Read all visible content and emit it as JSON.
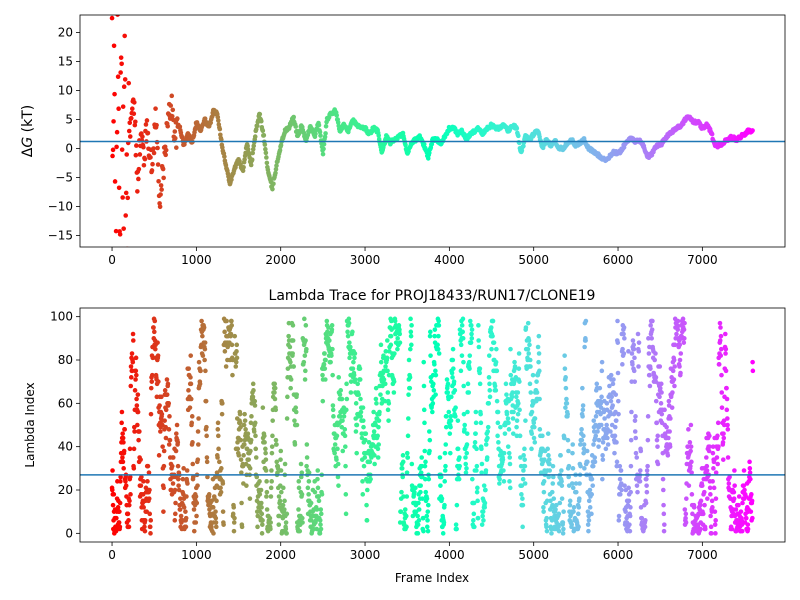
{
  "figure": {
    "background": "#ffffff",
    "reference_line_color": "#1f77b4",
    "colormap": "rainbow"
  },
  "chart_data": [
    {
      "type": "scatter",
      "title": "",
      "xlabel": "",
      "ylabel_prefix": "Δ",
      "ylabel_var": "G",
      "ylabel_suffix": " (kT)",
      "xlim": [
        -380,
        7980
      ],
      "ylim": [
        -17,
        23
      ],
      "xticks": [
        0,
        1000,
        2000,
        3000,
        4000,
        5000,
        6000,
        7000
      ],
      "yticks": [
        -15,
        -10,
        -5,
        0,
        5,
        10,
        15,
        20
      ],
      "hline": 1.2,
      "n_frames": 7600,
      "color_by": "frame index (rainbow colormap, red at start to violet at end)",
      "trace": [
        [
          0,
          20
        ],
        [
          10,
          -16.5
        ],
        [
          25,
          12
        ],
        [
          40,
          -13
        ],
        [
          55,
          10
        ],
        [
          70,
          7.5
        ],
        [
          90,
          -7
        ],
        [
          110,
          6.5
        ],
        [
          130,
          -4
        ],
        [
          150,
          5.5
        ],
        [
          175,
          -6
        ],
        [
          200,
          4
        ],
        [
          230,
          5
        ],
        [
          260,
          7.5
        ],
        [
          300,
          -5
        ],
        [
          340,
          2
        ],
        [
          380,
          -1
        ],
        [
          420,
          4
        ],
        [
          470,
          -4
        ],
        [
          520,
          6
        ],
        [
          560,
          -8.5
        ],
        [
          600,
          -5
        ],
        [
          650,
          3
        ],
        [
          700,
          8
        ],
        [
          750,
          2
        ],
        [
          800,
          4
        ],
        [
          850,
          0.5
        ],
        [
          900,
          2.5
        ],
        [
          950,
          1
        ],
        [
          1000,
          4.5
        ],
        [
          1050,
          3
        ],
        [
          1100,
          5
        ],
        [
          1150,
          3.5
        ],
        [
          1200,
          6.5
        ],
        [
          1250,
          6
        ],
        [
          1300,
          1
        ],
        [
          1350,
          -3
        ],
        [
          1400,
          -6
        ],
        [
          1450,
          -3.5
        ],
        [
          1500,
          -2
        ],
        [
          1550,
          -4
        ],
        [
          1600,
          1
        ],
        [
          1650,
          -3
        ],
        [
          1700,
          2.5
        ],
        [
          1750,
          6
        ],
        [
          1800,
          2
        ],
        [
          1850,
          -4
        ],
        [
          1900,
          -7
        ],
        [
          1950,
          -3
        ],
        [
          2000,
          0.5
        ],
        [
          2050,
          3
        ],
        [
          2100,
          3.5
        ],
        [
          2150,
          5.5
        ],
        [
          2200,
          2
        ],
        [
          2250,
          4
        ],
        [
          2300,
          1
        ],
        [
          2350,
          4
        ],
        [
          2400,
          2
        ],
        [
          2450,
          4.5
        ],
        [
          2500,
          -1
        ],
        [
          2550,
          5
        ],
        [
          2600,
          6
        ],
        [
          2650,
          6.5
        ],
        [
          2700,
          3
        ],
        [
          2750,
          4
        ],
        [
          2800,
          3
        ],
        [
          2850,
          5
        ],
        [
          2900,
          4
        ],
        [
          2950,
          3.5
        ],
        [
          3000,
          3.5
        ],
        [
          3050,
          2.5
        ],
        [
          3100,
          3.5
        ],
        [
          3150,
          3
        ],
        [
          3200,
          -1
        ],
        [
          3250,
          2
        ],
        [
          3300,
          1
        ],
        [
          3350,
          1.5
        ],
        [
          3400,
          2
        ],
        [
          3450,
          2.5
        ],
        [
          3500,
          -1
        ],
        [
          3550,
          1
        ],
        [
          3600,
          1.5
        ],
        [
          3650,
          2
        ],
        [
          3700,
          0.5
        ],
        [
          3750,
          -1.5
        ],
        [
          3800,
          1.5
        ],
        [
          3850,
          1.5
        ],
        [
          3900,
          1
        ],
        [
          3950,
          2
        ],
        [
          4000,
          3.5
        ],
        [
          4050,
          3.5
        ],
        [
          4100,
          2.5
        ],
        [
          4150,
          3
        ],
        [
          4200,
          1.5
        ],
        [
          4250,
          2.5
        ],
        [
          4300,
          3
        ],
        [
          4350,
          3.5
        ],
        [
          4400,
          2.5
        ],
        [
          4450,
          3.5
        ],
        [
          4500,
          4
        ],
        [
          4550,
          3.5
        ],
        [
          4600,
          3.5
        ],
        [
          4650,
          4
        ],
        [
          4700,
          3
        ],
        [
          4750,
          4
        ],
        [
          4800,
          3.5
        ],
        [
          4850,
          -1
        ],
        [
          4900,
          2
        ],
        [
          4950,
          1.5
        ],
        [
          5000,
          2.5
        ],
        [
          5050,
          3
        ],
        [
          5100,
          0
        ],
        [
          5150,
          1.5
        ],
        [
          5200,
          0.5
        ],
        [
          5250,
          1.5
        ],
        [
          5300,
          0
        ],
        [
          5350,
          0
        ],
        [
          5400,
          1
        ],
        [
          5450,
          1.5
        ],
        [
          5500,
          0.5
        ],
        [
          5550,
          1
        ],
        [
          5600,
          1.5
        ],
        [
          5650,
          0
        ],
        [
          5700,
          -0.5
        ],
        [
          5750,
          -1
        ],
        [
          5800,
          -1.5
        ],
        [
          5850,
          -2
        ],
        [
          5900,
          -1.5
        ],
        [
          5950,
          -0.5
        ],
        [
          6000,
          -1
        ],
        [
          6050,
          0
        ],
        [
          6100,
          1
        ],
        [
          6150,
          2
        ],
        [
          6200,
          1
        ],
        [
          6250,
          1.5
        ],
        [
          6300,
          0.5
        ],
        [
          6350,
          -1.5
        ],
        [
          6400,
          -1
        ],
        [
          6450,
          0.5
        ],
        [
          6500,
          0.5
        ],
        [
          6550,
          1.5
        ],
        [
          6600,
          2.5
        ],
        [
          6650,
          3
        ],
        [
          6700,
          3.5
        ],
        [
          6750,
          4
        ],
        [
          6800,
          5
        ],
        [
          6850,
          5.5
        ],
        [
          6900,
          4.5
        ],
        [
          6950,
          4.5
        ],
        [
          7000,
          3.5
        ],
        [
          7050,
          4
        ],
        [
          7100,
          3
        ],
        [
          7150,
          0.5
        ],
        [
          7200,
          0.5
        ],
        [
          7250,
          1
        ],
        [
          7300,
          1.5
        ],
        [
          7350,
          2
        ],
        [
          7400,
          1.5
        ],
        [
          7450,
          2
        ],
        [
          7500,
          2.5
        ],
        [
          7550,
          3
        ],
        [
          7590,
          3
        ]
      ]
    },
    {
      "type": "scatter",
      "title": "Lambda Trace for PROJ18433/RUN17/CLONE19",
      "xlabel": "Frame Index",
      "ylabel": "Lambda Index",
      "xlim": [
        -380,
        7980
      ],
      "ylim": [
        -4,
        104
      ],
      "xticks": [
        0,
        1000,
        2000,
        3000,
        4000,
        5000,
        6000,
        7000
      ],
      "yticks": [
        0,
        20,
        40,
        60,
        80,
        100
      ],
      "hline": 27,
      "n_frames": 7600,
      "lambda_range": [
        0,
        99
      ],
      "color_by": "frame index (rainbow colormap, red at start to violet at end)"
    }
  ]
}
